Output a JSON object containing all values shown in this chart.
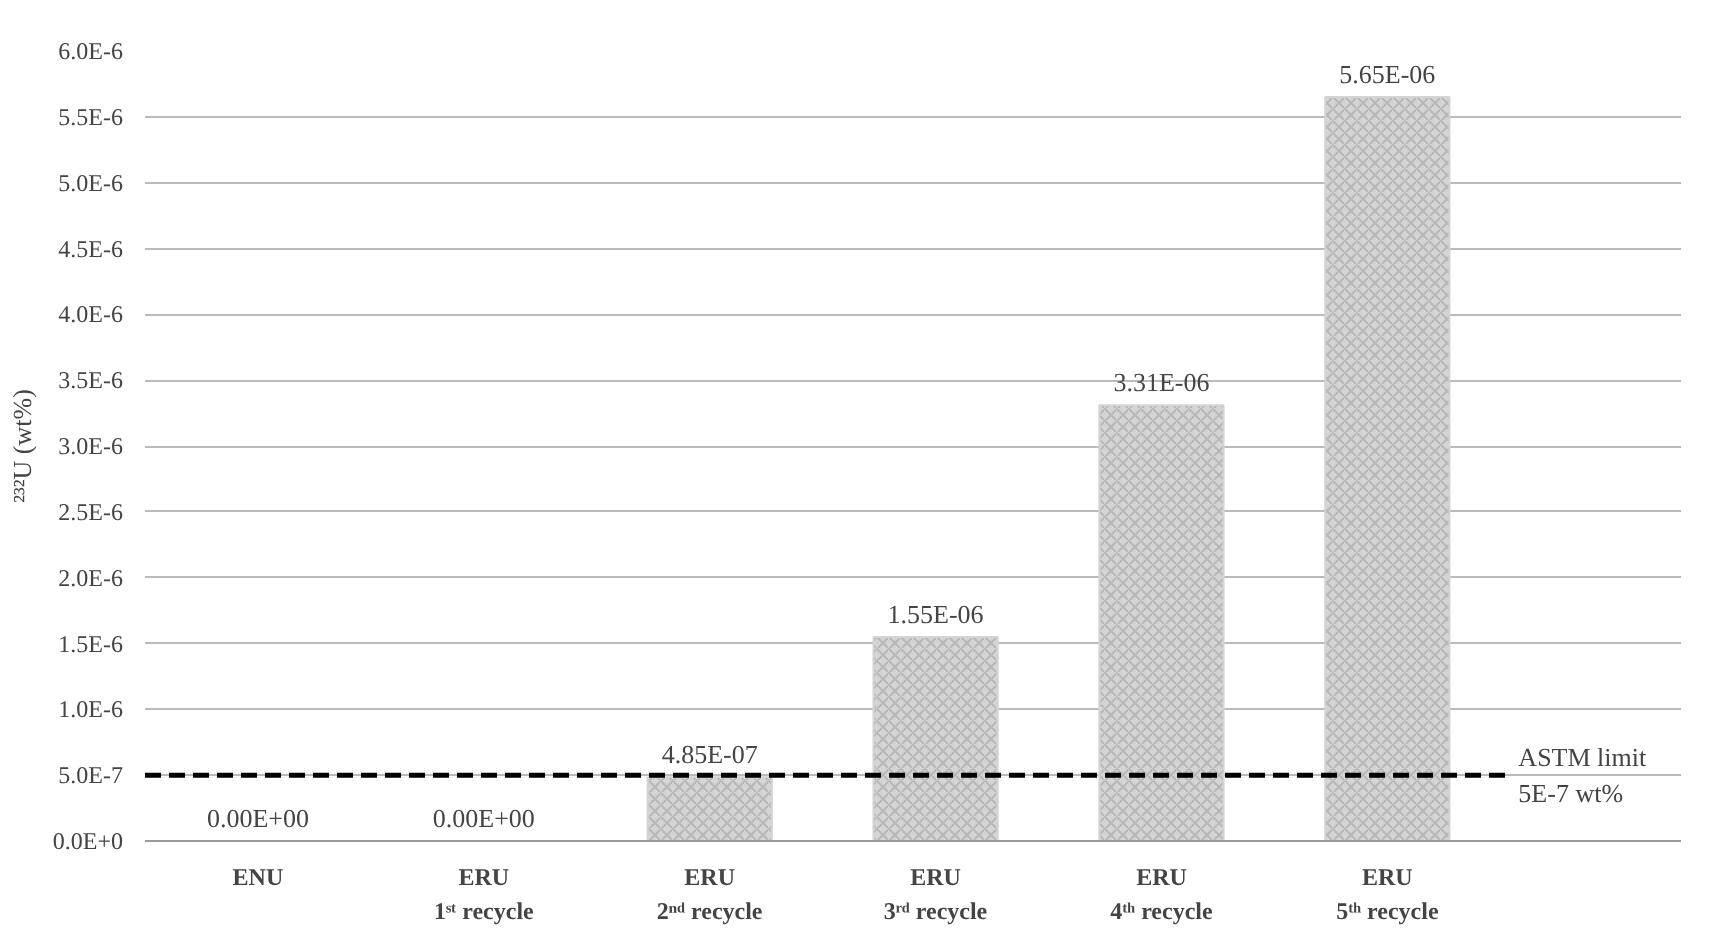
{
  "chart_data": {
    "type": "bar",
    "ylabel": "²³²U (wt%)",
    "categories": [
      "ENU",
      "ERU\n1ˢᵗ recycle",
      "ERU\n2ⁿᵈ recycle",
      "ERU\n3ʳᵈ recycle",
      "ERU\n4ᵗʰ recycle",
      "ERU\n5ᵗʰ recycle"
    ],
    "values": [
      0,
      0,
      4.85e-07,
      1.55e-06,
      3.31e-06,
      5.65e-06
    ],
    "value_labels": [
      "0.00E+00",
      "0.00E+00",
      "4.85E-07",
      "1.55E-06",
      "3.31E-06",
      "5.65E-06"
    ],
    "color": "#d4d4d4",
    "ylim": [
      0,
      6e-06
    ],
    "yticks": [
      {
        "value": 0,
        "label": "0.0E+0"
      },
      {
        "value": 5e-07,
        "label": "5.0E-7"
      },
      {
        "value": 1e-06,
        "label": "1.0E-6"
      },
      {
        "value": 1.5e-06,
        "label": "1.5E-6"
      },
      {
        "value": 2e-06,
        "label": "2.0E-6"
      },
      {
        "value": 2.5e-06,
        "label": "2.5E-6"
      },
      {
        "value": 3e-06,
        "label": "3.0E-6"
      },
      {
        "value": 3.5e-06,
        "label": "3.5E-6"
      },
      {
        "value": 4e-06,
        "label": "4.0E-6"
      },
      {
        "value": 4.5e-06,
        "label": "4.5E-6"
      },
      {
        "value": 5e-06,
        "label": "5.0E-6"
      },
      {
        "value": 5.5e-06,
        "label": "5.5E-6"
      },
      {
        "value": 6e-06,
        "label": "6.0E-6"
      }
    ],
    "ref_lines": [
      {
        "axis": "y",
        "value": 5e-07,
        "label": "ASTM limit\n5E-7 wt%",
        "color": "#000000",
        "line_style": "dashed"
      }
    ],
    "grid": "y"
  }
}
